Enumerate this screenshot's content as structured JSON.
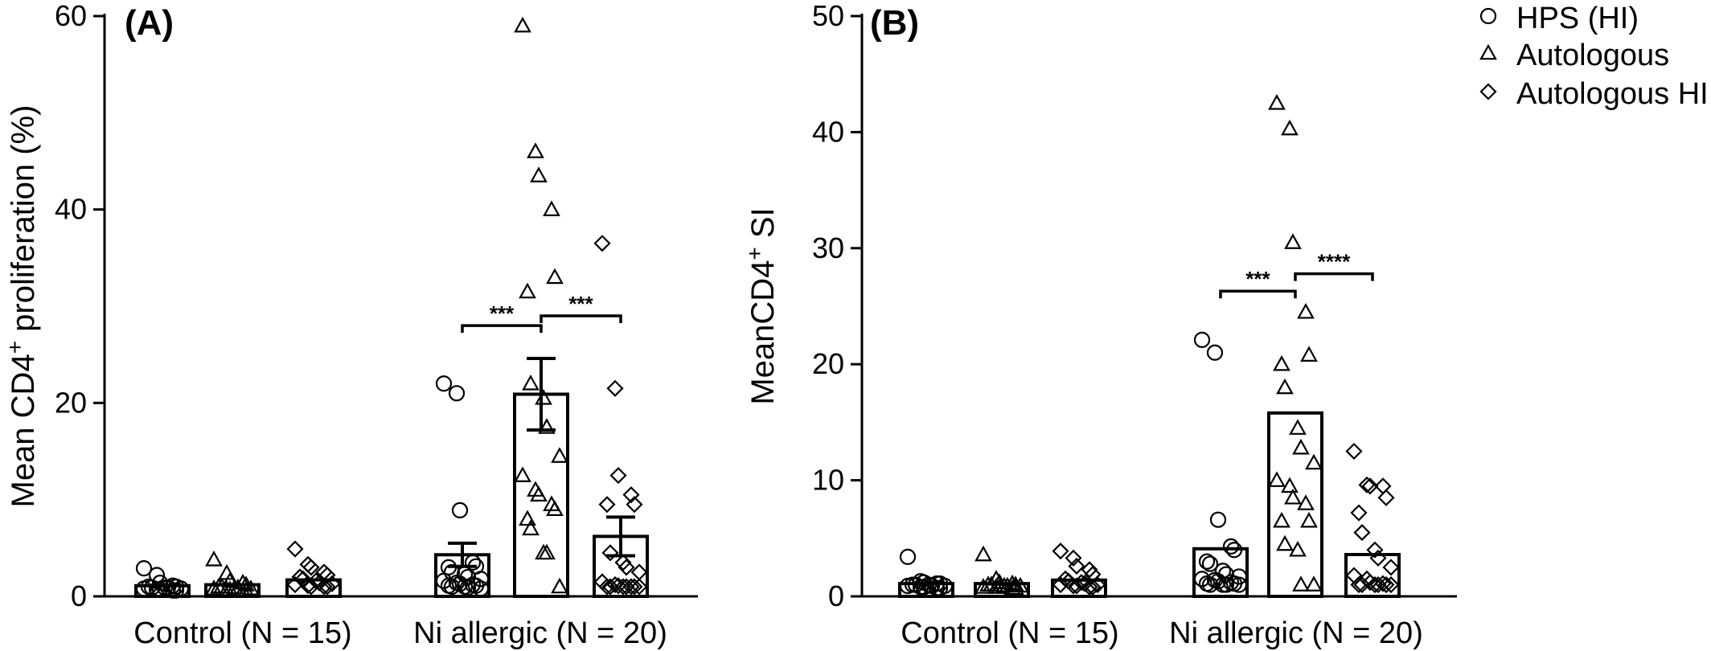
{
  "chart_data": [
    {
      "type": "bar",
      "panel_label": "(A)",
      "ylabel": "Mean CD4+ proliferation (%)",
      "ylim": [
        0,
        60
      ],
      "yticks": [
        "0",
        "20",
        "40",
        "60"
      ],
      "group_labels": [
        "Control (N = 15)",
        "Ni allergic (N = 20)"
      ],
      "series": [
        {
          "name": "HPS (HI)",
          "marker": "circle",
          "means": [
            1.1,
            4.3
          ],
          "sem": [
            null,
            1.2
          ],
          "points": [
            [
              2.9,
              2.2,
              1.4,
              1.1,
              1.0,
              1.0,
              0.9,
              0.9,
              0.9,
              0.8,
              0.8,
              0.7,
              0.7,
              0.6,
              0.6
            ],
            [
              22.0,
              21.0,
              8.9,
              3.5,
              3.1,
              3.0,
              2.5,
              2.3,
              2.0,
              1.8,
              1.6,
              1.4,
              1.3,
              1.2,
              1.1,
              1.1,
              1.0,
              1.0,
              0.9,
              0.8
            ]
          ]
        },
        {
          "name": "Autologous",
          "marker": "triangle",
          "means": [
            1.2,
            20.9
          ],
          "sem": [
            null,
            3.7
          ],
          "points": [
            [
              3.8,
              2.4,
              1.6,
              1.4,
              1.2,
              1.0,
              1.0,
              0.9,
              0.9,
              0.8,
              0.8,
              0.7,
              0.7,
              0.6,
              0.6
            ],
            [
              59.0,
              46.0,
              43.5,
              40.0,
              33.0,
              31.5,
              22.0,
              20.5,
              17.5,
              14.5,
              12.5,
              11.0,
              10.5,
              9.5,
              9.0,
              8.0,
              7.0,
              4.5,
              4.5,
              1.0
            ]
          ]
        },
        {
          "name": "Autologous HI",
          "marker": "diamond",
          "means": [
            1.7,
            6.2
          ],
          "sem": [
            null,
            2.0
          ],
          "points": [
            [
              4.9,
              3.3,
              3.0,
              2.5,
              2.2,
              2.0,
              1.8,
              1.6,
              1.4,
              1.3,
              1.2,
              1.1,
              1.0,
              1.0,
              1.0
            ],
            [
              36.5,
              21.5,
              12.5,
              10.5,
              9.5,
              9.5,
              4.5,
              3.5,
              3.0,
              2.5,
              1.5,
              1.2,
              1.1,
              1.0,
              1.0,
              1.0,
              1.0,
              1.0,
              1.0,
              1.0
            ]
          ]
        }
      ],
      "annotations": [
        {
          "text": "***",
          "from": "HPS (HI)",
          "to": "Autologous",
          "group": 1,
          "y": 28
        },
        {
          "text": "***",
          "from": "Autologous",
          "to": "Autologous HI",
          "group": 1,
          "y": 29
        }
      ]
    },
    {
      "type": "bar",
      "panel_label": "(B)",
      "ylabel": "MeanCD4+ SI",
      "ylim": [
        0,
        50
      ],
      "yticks": [
        "0",
        "10",
        "20",
        "30",
        "40",
        "50"
      ],
      "group_labels": [
        "Control (N = 15)",
        "Ni allergic (N = 20)"
      ],
      "series": [
        {
          "name": "HPS (HI)",
          "marker": "circle",
          "means": [
            1.1,
            4.1
          ],
          "sem": [
            null,
            null
          ],
          "points": [
            [
              3.4,
              1.3,
              1.2,
              1.1,
              1.1,
              1.0,
              1.0,
              1.0,
              0.9,
              0.9,
              0.9,
              0.8,
              0.8,
              0.7,
              0.7
            ],
            [
              22.1,
              21.0,
              6.6,
              4.3,
              4.0,
              3.0,
              2.8,
              2.2,
              1.9,
              1.7,
              1.5,
              1.4,
              1.3,
              1.2,
              1.1,
              1.1,
              1.0,
              1.0,
              1.0,
              1.0
            ]
          ]
        },
        {
          "name": "Autologous",
          "marker": "triangle",
          "means": [
            1.1,
            15.8
          ],
          "sem": [
            null,
            null
          ],
          "points": [
            [
              3.6,
              1.5,
              1.2,
              1.1,
              1.0,
              1.0,
              1.0,
              0.9,
              0.9,
              0.9,
              0.8,
              0.8,
              0.8,
              0.7,
              0.7
            ],
            [
              42.5,
              40.3,
              30.5,
              24.5,
              20.8,
              20.0,
              18.0,
              14.5,
              12.8,
              11.5,
              10.0,
              9.5,
              8.5,
              8.0,
              6.5,
              6.5,
              4.5,
              4.0,
              1.0,
              1.0
            ]
          ]
        },
        {
          "name": "Autologous HI",
          "marker": "diamond",
          "means": [
            1.4,
            3.6
          ],
          "sem": [
            null,
            null
          ],
          "points": [
            [
              3.9,
              3.3,
              2.6,
              2.3,
              1.9,
              1.5,
              1.3,
              1.2,
              1.1,
              1.0,
              1.0,
              0.9,
              0.9,
              0.8,
              0.8
            ],
            [
              12.5,
              9.6,
              9.5,
              9.5,
              8.5,
              7.2,
              5.5,
              4.0,
              3.3,
              2.5,
              1.8,
              1.5,
              1.2,
              1.1,
              1.0,
              1.0,
              1.0,
              1.0,
              1.0,
              1.0
            ]
          ]
        }
      ],
      "annotations": [
        {
          "text": "***",
          "from": "HPS (HI)",
          "to": "Autologous",
          "group": 1,
          "y": 26.3
        },
        {
          "text": "****",
          "from": "Autologous",
          "to": "Autologous HI",
          "group": 1,
          "y": 27.8
        }
      ]
    }
  ],
  "legend": {
    "position": "top-right",
    "items": [
      {
        "label": "HPS (HI)",
        "marker": "circle"
      },
      {
        "label": "Autologous",
        "marker": "triangle"
      },
      {
        "label": "Autologous HI",
        "marker": "diamond"
      }
    ]
  }
}
